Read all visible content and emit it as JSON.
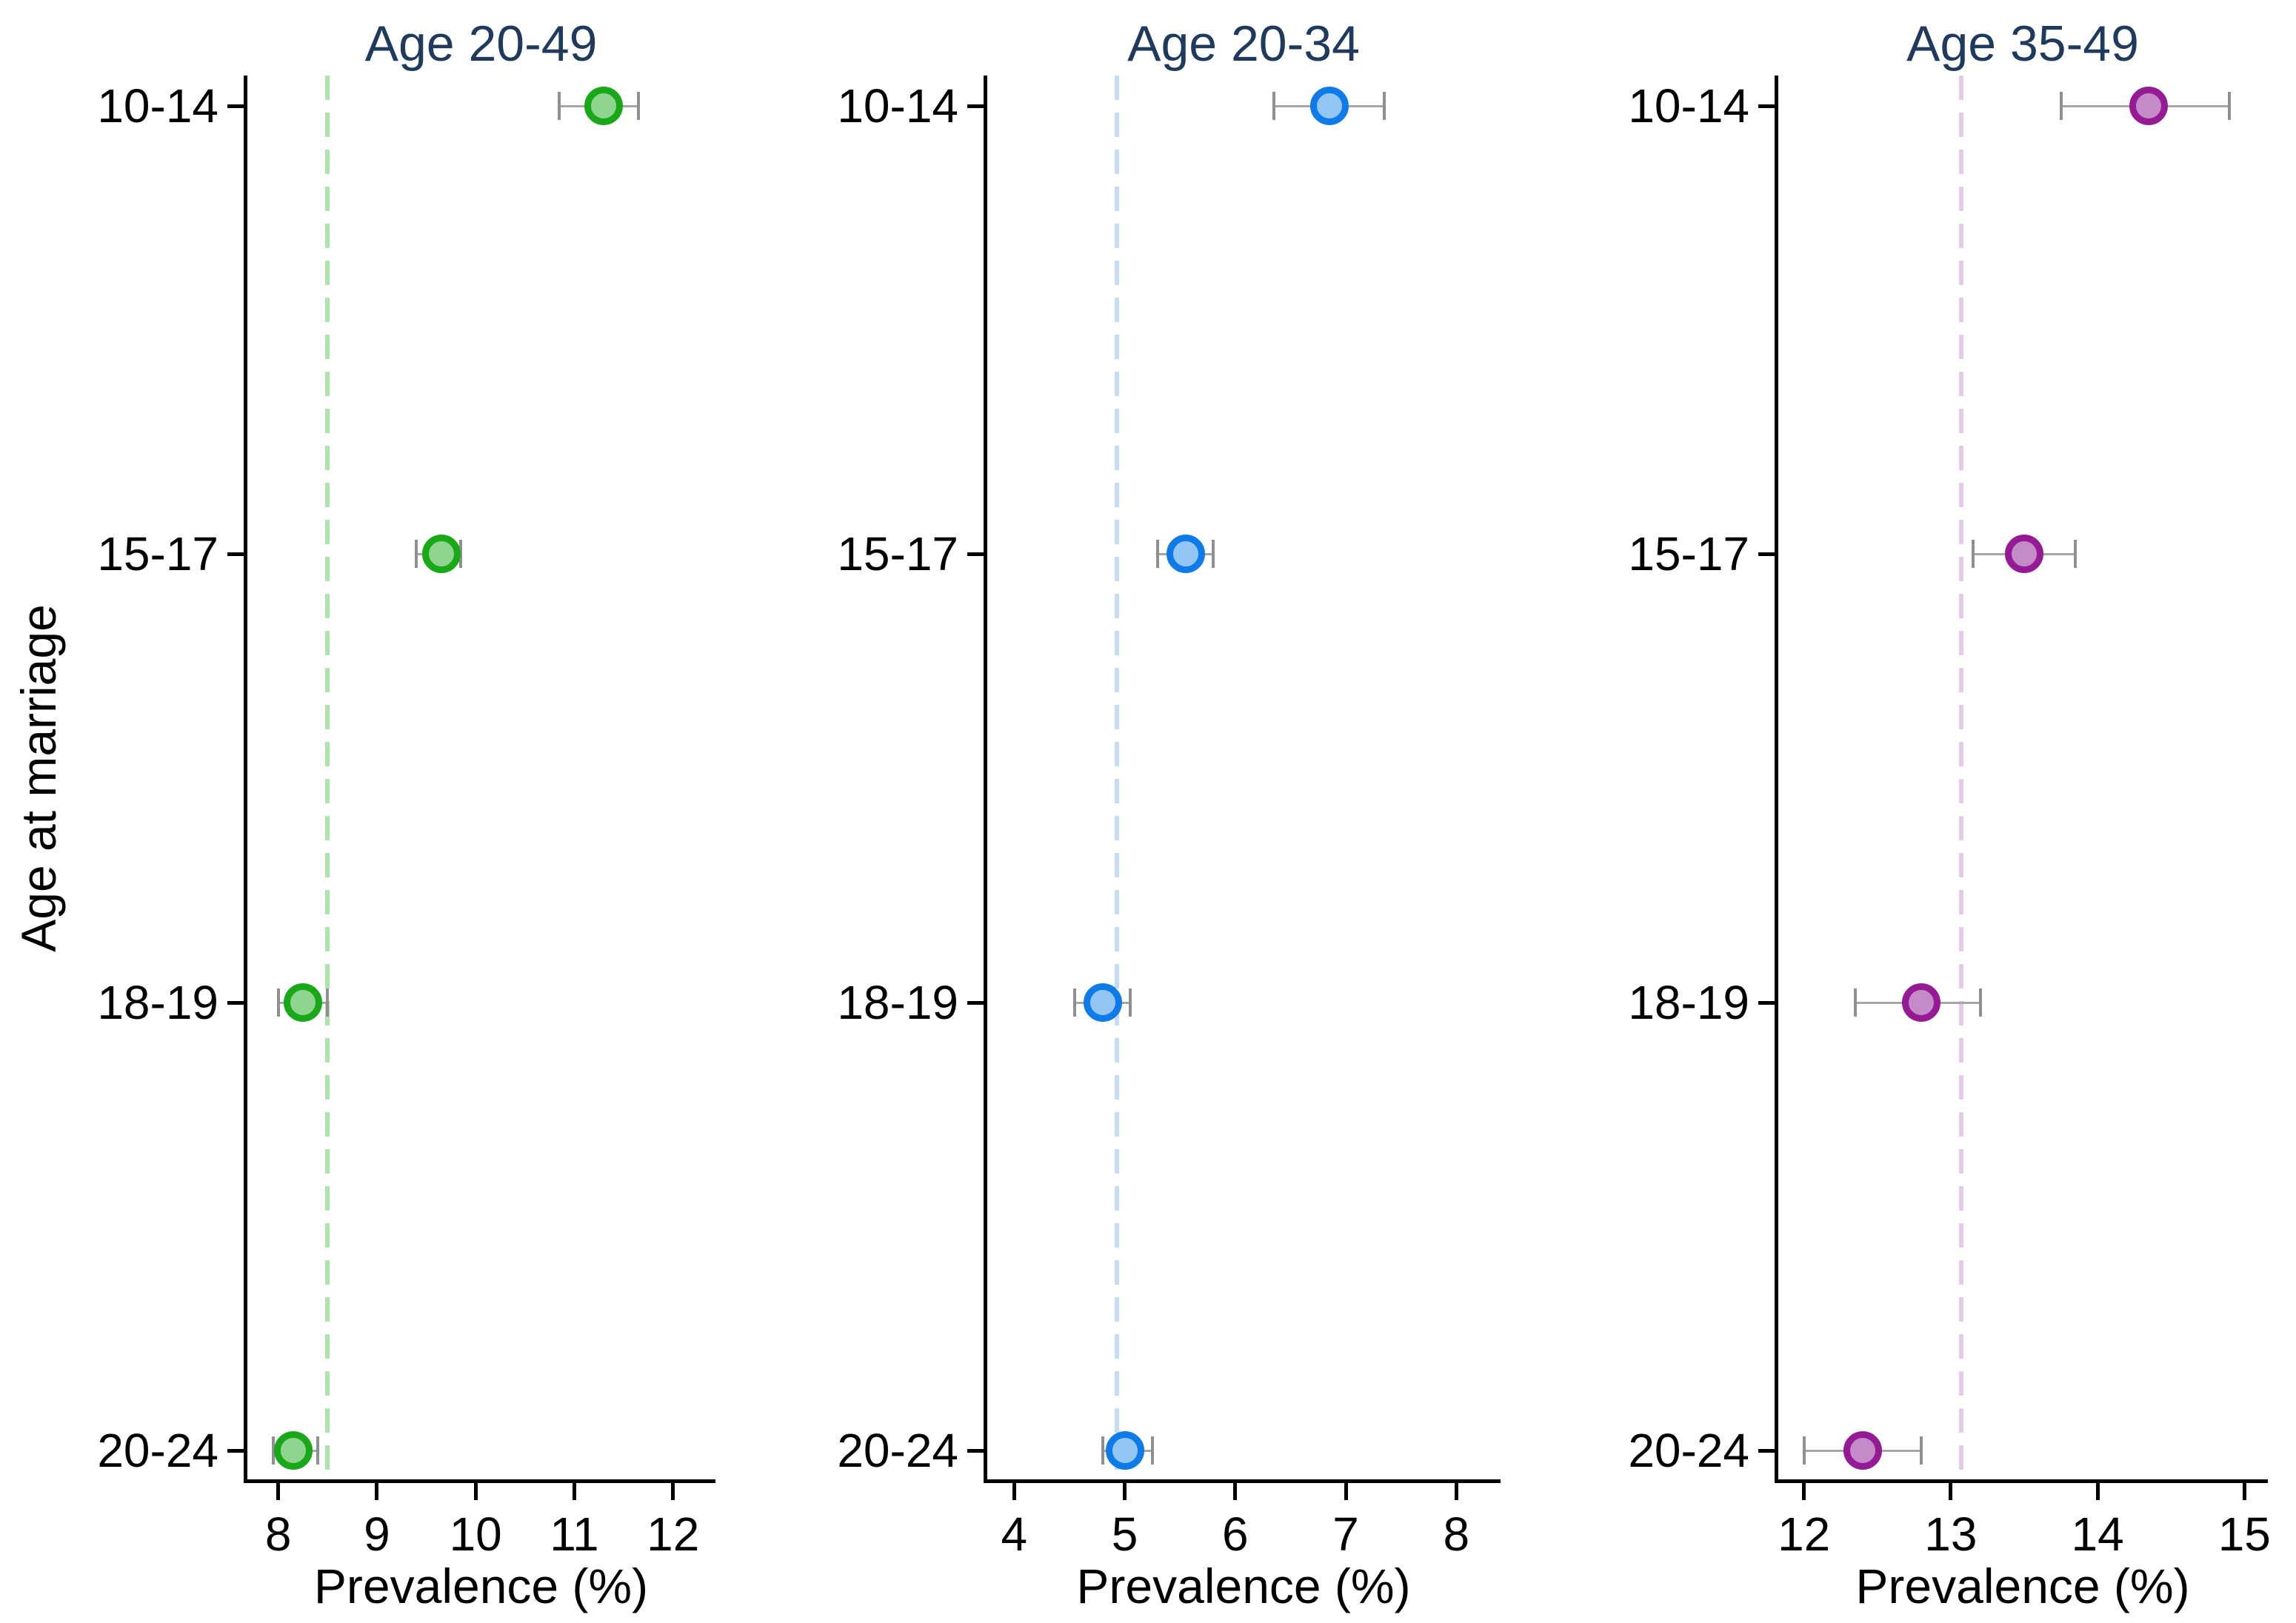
{
  "figure": {
    "y_axis_title": "Age at marriage",
    "x_axis_title": "Prevalence (%)",
    "categories": [
      "10-14",
      "15-17",
      "18-19",
      "20-24"
    ],
    "colors": {
      "title_text": "#1f3a5c",
      "tick_text": "#000000",
      "axis": "#000000",
      "error_bar_line": "#a6a6a6",
      "error_bar_cap": "#8f8f8f",
      "background": "#ffffff"
    }
  },
  "chart_data": [
    {
      "type": "scatter",
      "title": "Age 20-49",
      "xlabel": "Prevalence (%)",
      "ylabel": "Age at marriage",
      "orientation": "horizontal",
      "grid": false,
      "legend": "none",
      "categories": [
        "10-14",
        "15-17",
        "18-19",
        "20-24"
      ],
      "values": [
        11.3,
        9.65,
        8.25,
        8.15
      ],
      "ci_low": [
        10.85,
        9.4,
        8.0,
        7.95
      ],
      "ci_high": [
        11.65,
        9.85,
        8.5,
        8.4
      ],
      "reference_line": 8.5,
      "xlim": [
        7.68,
        12.43
      ],
      "xticks": [
        8,
        9,
        10,
        11,
        12
      ],
      "marker_fill": "#8fd58f",
      "marker_stroke": "#18a818",
      "reference_color": "#aee3ae"
    },
    {
      "type": "scatter",
      "title": "Age 20-34",
      "xlabel": "Prevalence (%)",
      "ylabel": "Age at marriage",
      "orientation": "horizontal",
      "grid": false,
      "legend": "none",
      "categories": [
        "10-14",
        "15-17",
        "18-19",
        "20-24"
      ],
      "values": [
        6.85,
        5.55,
        4.8,
        5.0
      ],
      "ci_low": [
        6.35,
        5.3,
        4.55,
        4.8
      ],
      "ci_high": [
        7.35,
        5.8,
        5.05,
        5.25
      ],
      "reference_line": 4.93,
      "xlim": [
        3.75,
        8.4
      ],
      "xticks": [
        4,
        5,
        6,
        7,
        8
      ],
      "marker_fill": "#94c6f5",
      "marker_stroke": "#0e7be8",
      "reference_color": "#c2ddf6"
    },
    {
      "type": "scatter",
      "title": "Age 35-49",
      "xlabel": "Prevalence (%)",
      "ylabel": "Age at marriage",
      "orientation": "horizontal",
      "grid": false,
      "legend": "none",
      "categories": [
        "10-14",
        "15-17",
        "18-19",
        "20-24"
      ],
      "values": [
        14.35,
        13.5,
        12.8,
        12.4
      ],
      "ci_low": [
        13.75,
        13.15,
        12.35,
        12.0
      ],
      "ci_high": [
        14.9,
        13.85,
        13.2,
        12.8
      ],
      "reference_line": 13.07,
      "xlim": [
        11.82,
        15.16
      ],
      "xticks": [
        12,
        13,
        14,
        15
      ],
      "marker_fill": "#c58bc9",
      "marker_stroke": "#951b95",
      "reference_color": "#e5c9e8"
    }
  ]
}
